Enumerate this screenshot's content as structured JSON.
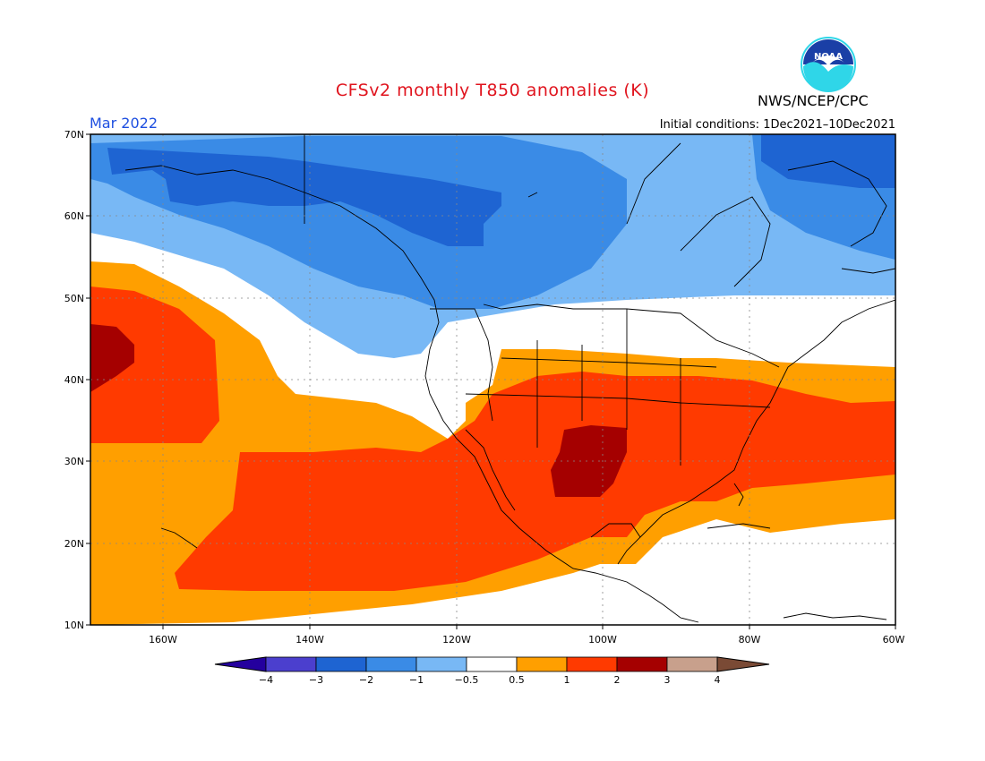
{
  "header": {
    "title": "CFSv2 monthly T850 anomalies (K)",
    "organization": "NWS/NCEP/CPC",
    "logo_text": "NOAA",
    "valid_month": "Mar 2022",
    "initial_conditions": "Initial conditions: 1Dec2021–10Dec2021"
  },
  "colors": {
    "title": "#e0141e",
    "month_label": "#1e4fe0",
    "logo_blue": "#1a3fa6",
    "logo_cyan": "#2fd6e8"
  },
  "map": {
    "lon_range": [
      -170,
      -60
    ],
    "lat_range": [
      10,
      70
    ],
    "x_ticks": [
      "160W",
      "140W",
      "120W",
      "100W",
      "80W",
      "60W"
    ],
    "y_ticks": [
      "10N",
      "20N",
      "30N",
      "40N",
      "50N",
      "60N",
      "70N"
    ],
    "grid": true
  },
  "legend": {
    "colors": [
      "#24009e",
      "#4b3fce",
      "#1e64d2",
      "#3a8be6",
      "#78b8f5",
      "#ffffff",
      "#ff9f00",
      "#ff3a00",
      "#a50000",
      "#c8a08c",
      "#7a4a35"
    ],
    "labels": [
      "−4",
      "−3",
      "−2",
      "−1",
      "−0.5",
      "0.5",
      "1",
      "2",
      "3",
      "4"
    ]
  }
}
